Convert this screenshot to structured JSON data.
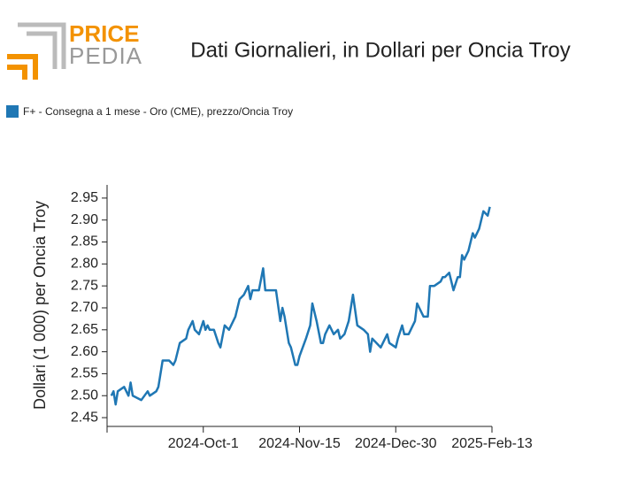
{
  "logo": {
    "top": "PRICE",
    "bottom": "PEDIA"
  },
  "chart_data": {
    "type": "line",
    "title": "Dati Giornalieri, in Dollari per Oncia Troy",
    "y_label": "Dollari (1 000) per Oncia Troy",
    "legend_position": "top-left",
    "xlim": [
      "2024-08-17",
      "2025-02-13"
    ],
    "xticks": [
      {
        "value": "2024-10-01",
        "label": "2024-Oct-1"
      },
      {
        "value": "2024-11-15",
        "label": "2024-Nov-15"
      },
      {
        "value": "2024-12-30",
        "label": "2024-Dec-30"
      },
      {
        "value": "2025-02-13",
        "label": "2025-Feb-13"
      }
    ],
    "ylim": [
      2.43,
      2.98
    ],
    "yticks": [
      2.45,
      {
        "value": 2.5,
        "label": "2.50"
      },
      2.55,
      {
        "value": 2.6,
        "label": "2.60"
      },
      2.65,
      {
        "value": 2.7,
        "label": "2.70"
      },
      2.75,
      {
        "value": 2.8,
        "label": "2.80"
      },
      2.85,
      {
        "value": 2.9,
        "label": "2.90"
      },
      2.95
    ],
    "x": [
      "2024-08-19",
      "2024-08-20",
      "2024-08-21",
      "2024-08-22",
      "2024-08-25",
      "2024-08-27",
      "2024-08-28",
      "2024-08-29",
      "2024-09-02",
      "2024-09-05",
      "2024-09-06",
      "2024-09-09",
      "2024-09-10",
      "2024-09-12",
      "2024-09-15",
      "2024-09-17",
      "2024-09-18",
      "2024-09-20",
      "2024-09-23",
      "2024-09-24",
      "2024-09-26",
      "2024-09-27",
      "2024-09-29",
      "2024-10-01",
      "2024-10-02",
      "2024-10-03",
      "2024-10-04",
      "2024-10-06",
      "2024-10-08",
      "2024-10-09",
      "2024-10-11",
      "2024-10-13",
      "2024-10-16",
      "2024-10-18",
      "2024-10-20",
      "2024-10-22",
      "2024-10-23",
      "2024-10-24",
      "2024-10-27",
      "2024-10-29",
      "2024-10-30",
      "2024-11-04",
      "2024-11-06",
      "2024-11-07",
      "2024-11-08",
      "2024-11-10",
      "2024-11-11",
      "2024-11-13",
      "2024-11-14",
      "2024-11-15",
      "2024-11-18",
      "2024-11-20",
      "2024-11-21",
      "2024-11-23",
      "2024-11-25",
      "2024-11-26",
      "2024-11-27",
      "2024-11-29",
      "2024-12-01",
      "2024-12-03",
      "2024-12-04",
      "2024-12-06",
      "2024-12-08",
      "2024-12-10",
      "2024-12-12",
      "2024-12-15",
      "2024-12-17",
      "2024-12-18",
      "2024-12-19",
      "2024-12-23",
      "2024-12-26",
      "2024-12-27",
      "2024-12-30",
      "2024-12-31",
      "2025-01-02",
      "2025-01-03",
      "2025-01-05",
      "2025-01-07",
      "2025-01-08",
      "2025-01-09",
      "2025-01-12",
      "2025-01-14",
      "2025-01-15",
      "2025-01-17",
      "2025-01-20",
      "2025-01-21",
      "2025-01-22",
      "2025-01-24",
      "2025-01-25",
      "2025-01-26",
      "2025-01-28",
      "2025-01-29",
      "2025-01-30",
      "2025-01-31",
      "2025-02-02",
      "2025-02-04",
      "2025-02-05",
      "2025-02-07",
      "2025-02-09",
      "2025-02-11",
      "2025-02-12"
    ],
    "series": [
      {
        "name": "F+ - Consegna a 1 mese - Oro (CME), prezzo/Oncia Troy",
        "color": "#1f77b4",
        "values": [
          2.5,
          2.51,
          2.48,
          2.51,
          2.52,
          2.5,
          2.53,
          2.5,
          2.49,
          2.51,
          2.5,
          2.51,
          2.52,
          2.58,
          2.58,
          2.57,
          2.58,
          2.62,
          2.63,
          2.65,
          2.67,
          2.65,
          2.64,
          2.67,
          2.65,
          2.66,
          2.65,
          2.65,
          2.62,
          2.61,
          2.66,
          2.65,
          2.68,
          2.72,
          2.73,
          2.75,
          2.72,
          2.74,
          2.74,
          2.79,
          2.74,
          2.74,
          2.67,
          2.7,
          2.68,
          2.62,
          2.61,
          2.57,
          2.57,
          2.59,
          2.63,
          2.66,
          2.71,
          2.67,
          2.62,
          2.62,
          2.64,
          2.66,
          2.64,
          2.65,
          2.63,
          2.64,
          2.67,
          2.73,
          2.66,
          2.65,
          2.64,
          2.6,
          2.63,
          2.61,
          2.64,
          2.62,
          2.61,
          2.63,
          2.66,
          2.64,
          2.64,
          2.66,
          2.67,
          2.71,
          2.68,
          2.68,
          2.75,
          2.75,
          2.76,
          2.77,
          2.77,
          2.78,
          2.76,
          2.74,
          2.77,
          2.77,
          2.82,
          2.81,
          2.83,
          2.87,
          2.86,
          2.88,
          2.92,
          2.91,
          2.93
        ]
      }
    ]
  }
}
